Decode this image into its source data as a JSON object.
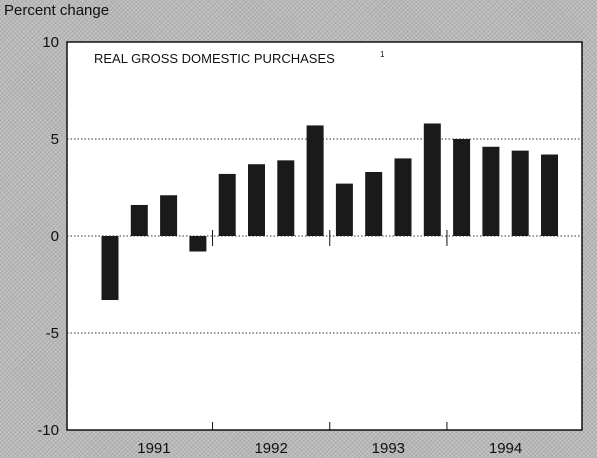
{
  "chart_data": {
    "type": "bar",
    "title": "REAL GROSS DOMESTIC PURCHASES",
    "title_footnote": "1",
    "ylabel": "Percent change",
    "xlabel": "",
    "ylim": [
      -10,
      10
    ],
    "yticks": [
      10,
      5,
      0,
      -5,
      -10
    ],
    "grid": "dotted horizontal at 5, 0, -5",
    "year_labels": [
      "1991",
      "1992",
      "1993",
      "1994"
    ],
    "categories": [
      "1991 Q1",
      "1991 Q2",
      "1991 Q3",
      "1991 Q4",
      "1992 Q1",
      "1992 Q2",
      "1992 Q3",
      "1992 Q4",
      "1993 Q1",
      "1993 Q2",
      "1993 Q3",
      "1993 Q4",
      "1994 Q1",
      "1994 Q2",
      "1994 Q3",
      "1994 Q4"
    ],
    "values": [
      -3.3,
      1.6,
      2.1,
      -0.8,
      3.2,
      3.7,
      3.9,
      5.7,
      2.7,
      3.3,
      4.0,
      5.8,
      5.0,
      4.6,
      4.4,
      4.2
    ],
    "bar_color": "#1a1a1a"
  }
}
